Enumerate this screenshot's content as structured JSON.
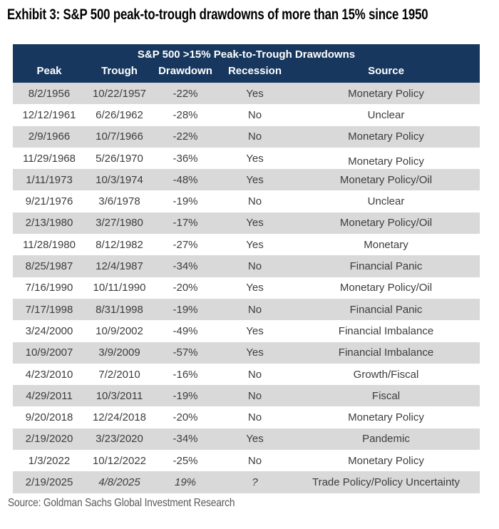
{
  "exhibit_title": "Exhibit 3: S&P 500 peak-to-trough drawdowns of more than 15% since 1950",
  "footnote": "Source: Goldman Sachs Global Investment Research",
  "colors": {
    "header_bg": "#17375E",
    "header_text": "#FFFFFF",
    "row_bg": "#FFFFFF",
    "row_alt_bg": "#D9D9D9",
    "body_text": "#3D3D3D",
    "title_text": "#000000",
    "footnote_text": "#595959"
  },
  "chart_data": {
    "type": "table",
    "title": "S&P 500 >15% Peak-to-Trough Drawdowns",
    "columns": [
      "Peak",
      "Trough",
      "Drawdown",
      "Recession",
      "Source"
    ],
    "rows": [
      {
        "peak": "8/2/1956",
        "trough": "10/22/1957",
        "drawdown": "-22%",
        "recession": "Yes",
        "source": "Monetary Policy"
      },
      {
        "peak": "12/12/1961",
        "trough": "6/26/1962",
        "drawdown": "-28%",
        "recession": "No",
        "source": "Unclear"
      },
      {
        "peak": "2/9/1966",
        "trough": "10/7/1966",
        "drawdown": "-22%",
        "recession": "No",
        "source": "Monetary Policy"
      },
      {
        "peak": "11/29/1968",
        "trough": "5/26/1970",
        "drawdown": "-36%",
        "recession": "Yes",
        "source": "Monetary Policy",
        "source_low": true
      },
      {
        "peak": "1/11/1973",
        "trough": "10/3/1974",
        "drawdown": "-48%",
        "recession": "Yes",
        "source": "Monetary Policy/Oil"
      },
      {
        "peak": "9/21/1976",
        "trough": "3/6/1978",
        "drawdown": "-19%",
        "recession": "No",
        "source": "Unclear"
      },
      {
        "peak": "2/13/1980",
        "trough": "3/27/1980",
        "drawdown": "-17%",
        "recession": "Yes",
        "source": "Monetary Policy/Oil"
      },
      {
        "peak": "11/28/1980",
        "trough": "8/12/1982",
        "drawdown": "-27%",
        "recession": "Yes",
        "source": "Monetary"
      },
      {
        "peak": "8/25/1987",
        "trough": "12/4/1987",
        "drawdown": "-34%",
        "recession": "No",
        "source": "Financial Panic"
      },
      {
        "peak": "7/16/1990",
        "trough": "10/11/1990",
        "drawdown": "-20%",
        "recession": "Yes",
        "source": "Monetary Policy/Oil"
      },
      {
        "peak": "7/17/1998",
        "trough": "8/31/1998",
        "drawdown": "-19%",
        "recession": "No",
        "source": "Financial Panic"
      },
      {
        "peak": "3/24/2000",
        "trough": "10/9/2002",
        "drawdown": "-49%",
        "recession": "Yes",
        "source": "Financial Imbalance"
      },
      {
        "peak": "10/9/2007",
        "trough": "3/9/2009",
        "drawdown": "-57%",
        "recession": "Yes",
        "source": "Financial Imbalance"
      },
      {
        "peak": "4/23/2010",
        "trough": "7/2/2010",
        "drawdown": "-16%",
        "recession": "No",
        "source": "Growth/Fiscal"
      },
      {
        "peak": "4/29/2011",
        "trough": "10/3/2011",
        "drawdown": "-19%",
        "recession": "No",
        "source": "Fiscal"
      },
      {
        "peak": "9/20/2018",
        "trough": "12/24/2018",
        "drawdown": "-20%",
        "recession": "No",
        "source": "Monetary Policy"
      },
      {
        "peak": "2/19/2020",
        "trough": "3/23/2020",
        "drawdown": "-34%",
        "recession": "Yes",
        "source": "Pandemic"
      },
      {
        "peak": "1/3/2022",
        "trough": "10/12/2022",
        "drawdown": "-25%",
        "recession": "No",
        "source": "Monetary Policy"
      },
      {
        "peak": "2/19/2025",
        "trough": "4/8/2025",
        "drawdown": "19%",
        "recession": "?",
        "source": "Trade Policy/Policy Uncertainty",
        "italics": [
          "trough",
          "drawdown",
          "recession"
        ]
      }
    ]
  }
}
